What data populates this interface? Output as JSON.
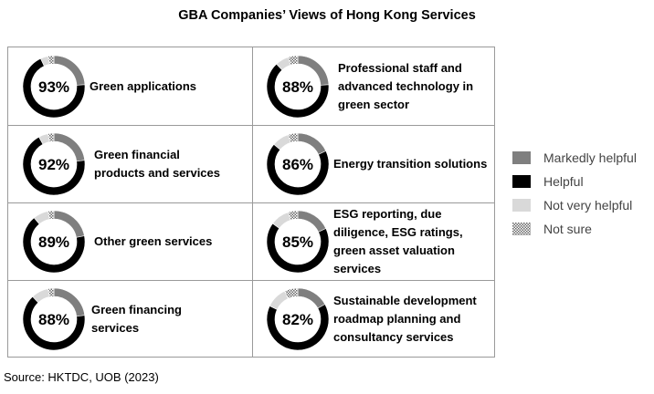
{
  "chart_data": {
    "type": "pie",
    "title": "GBA Companies’ Views of Hong Kong Services",
    "legend": {
      "placement": "right",
      "entries": [
        {
          "label": "Markedly helpful",
          "color": "#7f7f7f",
          "pattern": "solid"
        },
        {
          "label": "Helpful",
          "color": "#000000",
          "pattern": "solid"
        },
        {
          "label": "Not very helpful",
          "color": "#d9d9d9",
          "pattern": "solid"
        },
        {
          "label": "Not sure",
          "color": "#7f7f7f",
          "pattern": "dots"
        }
      ]
    },
    "charts": [
      {
        "label": "Green applications",
        "percent": "93%",
        "segments": [
          24,
          69,
          4,
          3
        ]
      },
      {
        "label": "Professional staff and advanced technology in green sector",
        "percent": "88%",
        "segments": [
          24,
          64,
          7,
          5
        ]
      },
      {
        "label": "Green financial products and services",
        "percent": "92%",
        "segments": [
          23,
          69,
          5,
          3
        ]
      },
      {
        "label": "Energy transition solutions",
        "percent": "86%",
        "segments": [
          18,
          68,
          9,
          5
        ]
      },
      {
        "label": "Other green services",
        "percent": "89%",
        "segments": [
          22,
          67,
          8,
          3
        ]
      },
      {
        "label": "ESG reporting, due diligence, ESG ratings, green asset valuation services",
        "percent": "85%",
        "segments": [
          18,
          67,
          10,
          5
        ]
      },
      {
        "label": "Green financing services",
        "percent": "88%",
        "segments": [
          23,
          65,
          9,
          3
        ]
      },
      {
        "label": "Sustainable development roadmap planning and consultancy services",
        "percent": "82%",
        "segments": [
          17,
          65,
          11,
          7
        ]
      }
    ]
  },
  "source": "Source: HKTDC, UOB (2023)"
}
